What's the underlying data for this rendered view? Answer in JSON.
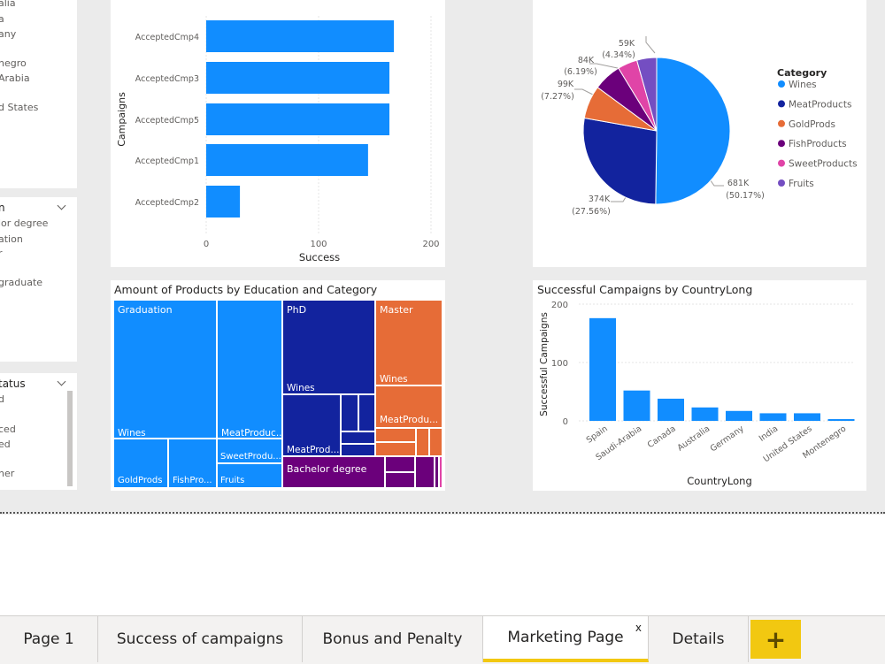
{
  "slicers": {
    "country_items": [
      "alia",
      "a",
      "any",
      "",
      "negro",
      "Arabia",
      "",
      "d States"
    ],
    "education": {
      "header": "n",
      "items": [
        "lor degree",
        "ation",
        "r",
        "",
        "graduate"
      ]
    },
    "marital": {
      "header": "tatus",
      "items": [
        "d",
        "",
        "ced",
        "ed",
        "",
        "her"
      ]
    }
  },
  "campaigns_chart": {
    "y_axis_label": "Campaigns",
    "x_axis_label": "Success",
    "x_ticks": [
      "0",
      "100",
      "200"
    ]
  },
  "category_pie": {
    "legend_title": "Category",
    "labels": {
      "wines": [
        "681K",
        "(50.17%)"
      ],
      "meat": [
        "374K",
        "(27.56%)"
      ],
      "gold": [
        "99K",
        "(7.27%)"
      ],
      "fish": [
        "84K",
        "(6.19%)"
      ],
      "fruits": [
        "59K",
        "(4.34%)"
      ]
    }
  },
  "treemap": {
    "title": "Amount of Products by Education and Category",
    "labels": {
      "graduation": "Graduation",
      "grad_wines": "Wines",
      "grad_meat": "MeatProduc...",
      "grad_gold": "GoldProds",
      "grad_fish": "FishPro...",
      "grad_sweet": "SweetProdu...",
      "grad_fruits": "Fruits",
      "phd": "PhD",
      "phd_wines": "Wines",
      "phd_meat": "MeatProd...",
      "master": "Master",
      "master_wines": "Wines",
      "master_meat": "MeatProdu...",
      "bachelor": "Bachelor degree"
    }
  },
  "country_chart": {
    "title": "Successful Campaigns by CountryLong",
    "y_axis_label": "Successful Campaigns",
    "x_axis_label": "CountryLong",
    "y_ticks": [
      "0",
      "100",
      "200"
    ]
  },
  "chart_data": [
    {
      "type": "bar",
      "orientation": "horizontal",
      "categories": [
        "AcceptedCmp4",
        "AcceptedCmp3",
        "AcceptedCmp5",
        "AcceptedCmp1",
        "AcceptedCmp2"
      ],
      "values": [
        167,
        163,
        163,
        144,
        30
      ],
      "xlabel": "Success",
      "ylabel": "Campaigns",
      "xlim": [
        0,
        200
      ]
    },
    {
      "type": "pie",
      "legend_title": "Category",
      "categories": [
        "Wines",
        "MeatProducts",
        "GoldProds",
        "FishProducts",
        "SweetProducts",
        "Fruits"
      ],
      "values": [
        681,
        374,
        99,
        84,
        59,
        59
      ],
      "percents": [
        50.17,
        27.56,
        7.27,
        6.19,
        4.34,
        4.34
      ],
      "colors": [
        "#118dff",
        "#12239e",
        "#e66c37",
        "#6b007b",
        "#e044a7",
        "#744ec2"
      ],
      "legend_position": "right"
    },
    {
      "type": "treemap",
      "title": "Amount of Products by Education and Category",
      "groups": [
        "Graduation",
        "PhD",
        "Master",
        "Bachelor degree"
      ]
    },
    {
      "type": "bar",
      "title": "Successful Campaigns by CountryLong",
      "categories": [
        "Spain",
        "Saudi-Arabia",
        "Canada",
        "Australia",
        "Germany",
        "India",
        "United States",
        "Montenegro"
      ],
      "values": [
        176,
        52,
        38,
        23,
        17,
        13,
        13,
        3
      ],
      "xlabel": "CountryLong",
      "ylabel": "Successful Campaigns",
      "ylim": [
        0,
        200
      ]
    }
  ],
  "tabs": [
    {
      "label": "Page 1"
    },
    {
      "label": "Success of campaigns"
    },
    {
      "label": "Bonus and Penalty"
    },
    {
      "label": "Marketing Page",
      "close": "x"
    },
    {
      "label": "Details"
    }
  ],
  "add_tab_label": "+"
}
